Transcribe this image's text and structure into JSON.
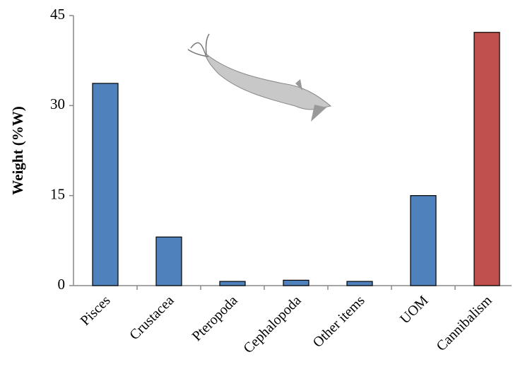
{
  "chart_data": {
    "type": "bar",
    "y_label": "Weight (%W)",
    "categories": [
      "Pisces",
      "Crustacea",
      "Pteropoda",
      "Cephalopoda",
      "Other items",
      "UOM",
      "Cannibalism"
    ],
    "values": [
      33.7,
      8.1,
      0.7,
      0.9,
      0.7,
      15.0,
      42.2
    ],
    "colors": [
      "#4f81bd",
      "#4f81bd",
      "#4f81bd",
      "#4f81bd",
      "#4f81bd",
      "#4f81bd",
      "#c0504d"
    ],
    "ylim": [
      0,
      45
    ],
    "yticks": [
      0,
      15,
      30,
      45
    ],
    "grid": false
  }
}
